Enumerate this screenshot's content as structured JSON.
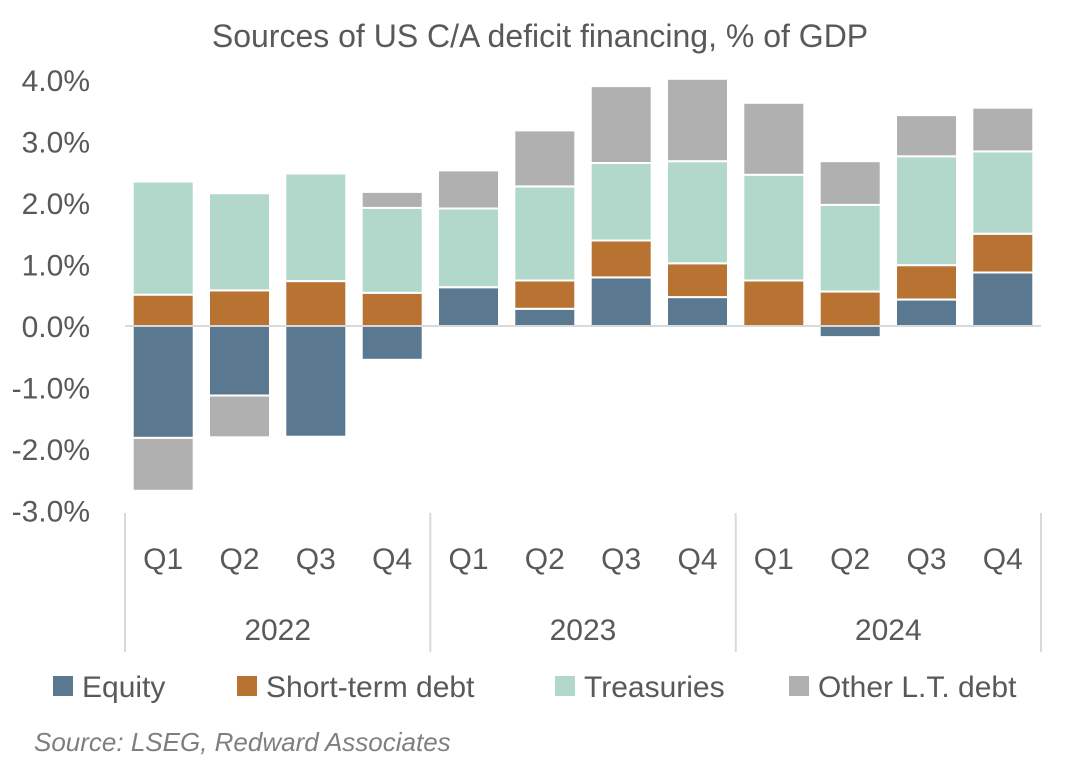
{
  "chart_data": {
    "type": "bar",
    "stacked": true,
    "title": "Sources of US C/A deficit financing, % of GDP",
    "source": "Source: LSEG, Redward Associates",
    "categories": [
      "Q1",
      "Q2",
      "Q3",
      "Q4",
      "Q1",
      "Q2",
      "Q3",
      "Q4",
      "Q1",
      "Q2",
      "Q3",
      "Q4"
    ],
    "groups": [
      {
        "label": "2022",
        "count": 4
      },
      {
        "label": "2023",
        "count": 4
      },
      {
        "label": "2024",
        "count": 4
      }
    ],
    "series": [
      {
        "name": "Equity",
        "color": "#5a7890",
        "values": [
          -1.82,
          -1.13,
          -1.8,
          -0.55,
          0.63,
          0.28,
          0.79,
          0.47,
          0.0,
          -0.18,
          0.43,
          0.87
        ]
      },
      {
        "name": "Short-term debt",
        "color": "#b87333",
        "values": [
          0.51,
          0.58,
          0.73,
          0.54,
          0.0,
          0.46,
          0.6,
          0.55,
          0.74,
          0.56,
          0.56,
          0.63
        ]
      },
      {
        "name": "Treasuries",
        "color": "#b2d8cc",
        "values": [
          1.84,
          1.58,
          1.75,
          1.38,
          1.28,
          1.53,
          1.26,
          1.66,
          1.72,
          1.41,
          1.77,
          1.34
        ]
      },
      {
        "name": "Other L.T. debt",
        "color": "#b0b0b0",
        "values": [
          -0.86,
          -0.68,
          0.0,
          0.26,
          0.62,
          0.91,
          1.25,
          1.34,
          1.17,
          0.71,
          0.67,
          0.71
        ]
      }
    ],
    "yticks": [
      "4.0%",
      "3.0%",
      "2.0%",
      "1.0%",
      "0.0%",
      "-1.0%",
      "-2.0%",
      "-3.0%"
    ],
    "ylim": [
      -3,
      4
    ],
    "grid": false,
    "legend": "bottom"
  }
}
